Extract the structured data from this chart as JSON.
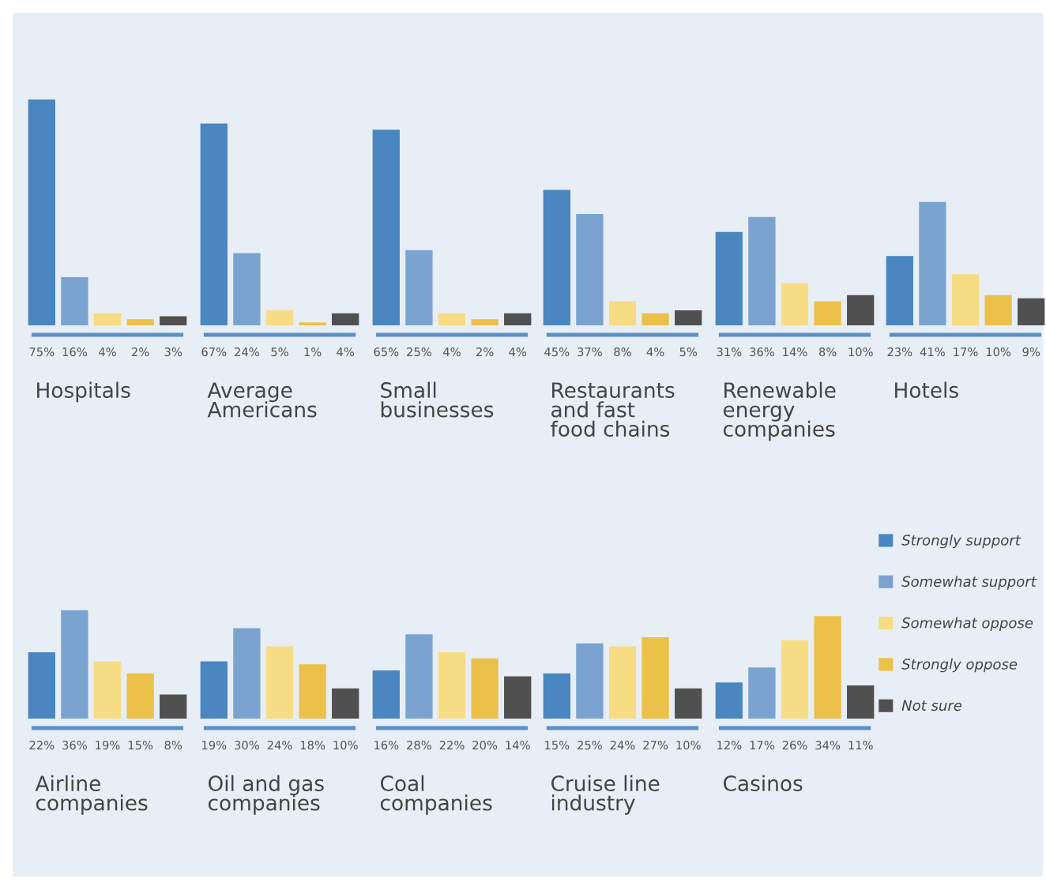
{
  "chart_data": [
    {
      "type": "bar",
      "title": "Hospitals",
      "categories": [
        null
      ],
      "series": [
        {
          "color": "#4a86bf",
          "values": [
            75
          ],
          "value_labels": [
            "75%"
          ]
        },
        {
          "color": "#7ba3cf",
          "values": [
            16
          ],
          "value_labels": [
            "16%"
          ]
        },
        {
          "color": "#f5dc85",
          "values": [
            4
          ],
          "value_labels": [
            "4%"
          ]
        },
        {
          "color": "#ecc14a",
          "values": [
            2
          ],
          "value_labels": [
            "2%"
          ]
        },
        {
          "color": "#505050",
          "values": [
            3
          ],
          "value_labels": [
            "3%"
          ]
        }
      ]
    },
    {
      "type": "bar",
      "title": "Average\nAmericans",
      "categories": [
        null
      ],
      "series": [
        {
          "color": "#4a86bf",
          "values": [
            67
          ],
          "value_labels": [
            "67%"
          ]
        },
        {
          "color": "#7ba3cf",
          "values": [
            24
          ],
          "value_labels": [
            "24%"
          ]
        },
        {
          "color": "#f5dc85",
          "values": [
            5
          ],
          "value_labels": [
            "5%"
          ]
        },
        {
          "color": "#ecc14a",
          "values": [
            1
          ],
          "value_labels": [
            "1%"
          ]
        },
        {
          "color": "#505050",
          "values": [
            4
          ],
          "value_labels": [
            "4%"
          ]
        }
      ]
    },
    {
      "type": "bar",
      "title": "Small\nbusinesses",
      "categories": [
        null
      ],
      "series": [
        {
          "color": "#4a86bf",
          "values": [
            65
          ],
          "value_labels": [
            "65%"
          ]
        },
        {
          "color": "#7ba3cf",
          "values": [
            25
          ],
          "value_labels": [
            "25%"
          ]
        },
        {
          "color": "#f5dc85",
          "values": [
            4
          ],
          "value_labels": [
            "4%"
          ]
        },
        {
          "color": "#ecc14a",
          "values": [
            2
          ],
          "value_labels": [
            "2%"
          ]
        },
        {
          "color": "#505050",
          "values": [
            4
          ],
          "value_labels": [
            "4%"
          ]
        }
      ]
    },
    {
      "type": "bar",
      "title": "Restaurants\nand fast\nfood chains",
      "categories": [
        null
      ],
      "series": [
        {
          "color": "#4a86bf",
          "values": [
            45
          ],
          "value_labels": [
            "45%"
          ]
        },
        {
          "color": "#7ba3cf",
          "values": [
            37
          ],
          "value_labels": [
            "37%"
          ]
        },
        {
          "color": "#f5dc85",
          "values": [
            8
          ],
          "value_labels": [
            "8%"
          ]
        },
        {
          "color": "#ecc14a",
          "values": [
            4
          ],
          "value_labels": [
            "4%"
          ]
        },
        {
          "color": "#505050",
          "values": [
            5
          ],
          "value_labels": [
            "5%"
          ]
        }
      ]
    },
    {
      "type": "bar",
      "title": "Renewable\nenergy\ncompanies",
      "categories": [
        null
      ],
      "series": [
        {
          "color": "#4a86bf",
          "values": [
            31
          ],
          "value_labels": [
            "31%"
          ]
        },
        {
          "color": "#7ba3cf",
          "values": [
            36
          ],
          "value_labels": [
            "36%"
          ]
        },
        {
          "color": "#f5dc85",
          "values": [
            14
          ],
          "value_labels": [
            "14%"
          ]
        },
        {
          "color": "#ecc14a",
          "values": [
            8
          ],
          "value_labels": [
            "8%"
          ]
        },
        {
          "color": "#505050",
          "values": [
            10
          ],
          "value_labels": [
            "10%"
          ]
        }
      ]
    },
    {
      "type": "bar",
      "title": "Hotels",
      "categories": [
        null
      ],
      "series": [
        {
          "color": "#4a86bf",
          "values": [
            23
          ],
          "value_labels": [
            "23%"
          ]
        },
        {
          "color": "#7ba3cf",
          "values": [
            41
          ],
          "value_labels": [
            "41%"
          ]
        },
        {
          "color": "#f5dc85",
          "values": [
            17
          ],
          "value_labels": [
            "17%"
          ]
        },
        {
          "color": "#ecc14a",
          "values": [
            10
          ],
          "value_labels": [
            "10%"
          ]
        },
        {
          "color": "#505050",
          "values": [
            9
          ],
          "value_labels": [
            "9%"
          ]
        }
      ]
    },
    {
      "type": "bar",
      "title": "Airline\ncompanies",
      "categories": [
        null
      ],
      "series": [
        {
          "color": "#4a86bf",
          "values": [
            22
          ],
          "value_labels": [
            "22%"
          ]
        },
        {
          "color": "#7ba3cf",
          "values": [
            36
          ],
          "value_labels": [
            "36%"
          ]
        },
        {
          "color": "#f5dc85",
          "values": [
            19
          ],
          "value_labels": [
            "19%"
          ]
        },
        {
          "color": "#ecc14a",
          "values": [
            15
          ],
          "value_labels": [
            "15%"
          ]
        },
        {
          "color": "#505050",
          "values": [
            8
          ],
          "value_labels": [
            "8%"
          ]
        }
      ]
    },
    {
      "type": "bar",
      "title": "Oil and gas\ncompanies",
      "categories": [
        null
      ],
      "series": [
        {
          "color": "#4a86bf",
          "values": [
            19
          ],
          "value_labels": [
            "19%"
          ]
        },
        {
          "color": "#7ba3cf",
          "values": [
            30
          ],
          "value_labels": [
            "30%"
          ]
        },
        {
          "color": "#f5dc85",
          "values": [
            24
          ],
          "value_labels": [
            "24%"
          ]
        },
        {
          "color": "#ecc14a",
          "values": [
            18
          ],
          "value_labels": [
            "18%"
          ]
        },
        {
          "color": "#505050",
          "values": [
            10
          ],
          "value_labels": [
            "10%"
          ]
        }
      ]
    },
    {
      "type": "bar",
      "title": "Coal\ncompanies",
      "categories": [
        null
      ],
      "series": [
        {
          "color": "#4a86bf",
          "values": [
            16
          ],
          "value_labels": [
            "16%"
          ]
        },
        {
          "color": "#7ba3cf",
          "values": [
            28
          ],
          "value_labels": [
            "28%"
          ]
        },
        {
          "color": "#f5dc85",
          "values": [
            22
          ],
          "value_labels": [
            "22%"
          ]
        },
        {
          "color": "#ecc14a",
          "values": [
            20
          ],
          "value_labels": [
            "20%"
          ]
        },
        {
          "color": "#505050",
          "values": [
            14
          ],
          "value_labels": [
            "14%"
          ]
        }
      ]
    },
    {
      "type": "bar",
      "title": "Cruise line\nindustry",
      "categories": [
        null
      ],
      "series": [
        {
          "color": "#4a86bf",
          "values": [
            15
          ],
          "value_labels": [
            "15%"
          ]
        },
        {
          "color": "#7ba3cf",
          "values": [
            25
          ],
          "value_labels": [
            "25%"
          ]
        },
        {
          "color": "#f5dc85",
          "values": [
            24
          ],
          "value_labels": [
            "24%"
          ]
        },
        {
          "color": "#ecc14a",
          "values": [
            27
          ],
          "value_labels": [
            "27%"
          ]
        },
        {
          "color": "#505050",
          "values": [
            10
          ],
          "value_labels": [
            "10%"
          ]
        }
      ]
    },
    {
      "type": "bar",
      "title": "Casinos",
      "categories": [
        null
      ],
      "legend": "right",
      "series": [
        {
          "name": "Strongly support",
          "color": "#4a86bf",
          "values": [
            12
          ],
          "value_labels": [
            "12%"
          ]
        },
        {
          "name": "Somewhat support",
          "color": "#7ba3cf",
          "values": [
            17
          ],
          "value_labels": [
            "17%"
          ]
        },
        {
          "name": "Somewhat oppose",
          "color": "#f5dc85",
          "values": [
            26
          ],
          "value_labels": [
            "26%"
          ]
        },
        {
          "name": "Strongly oppose",
          "color": "#ecc14a",
          "values": [
            34
          ],
          "value_labels": [
            "34%"
          ]
        },
        {
          "name": "Not sure",
          "color": "#505050",
          "values": [
            11
          ],
          "value_labels": [
            "11%"
          ]
        }
      ]
    }
  ]
}
